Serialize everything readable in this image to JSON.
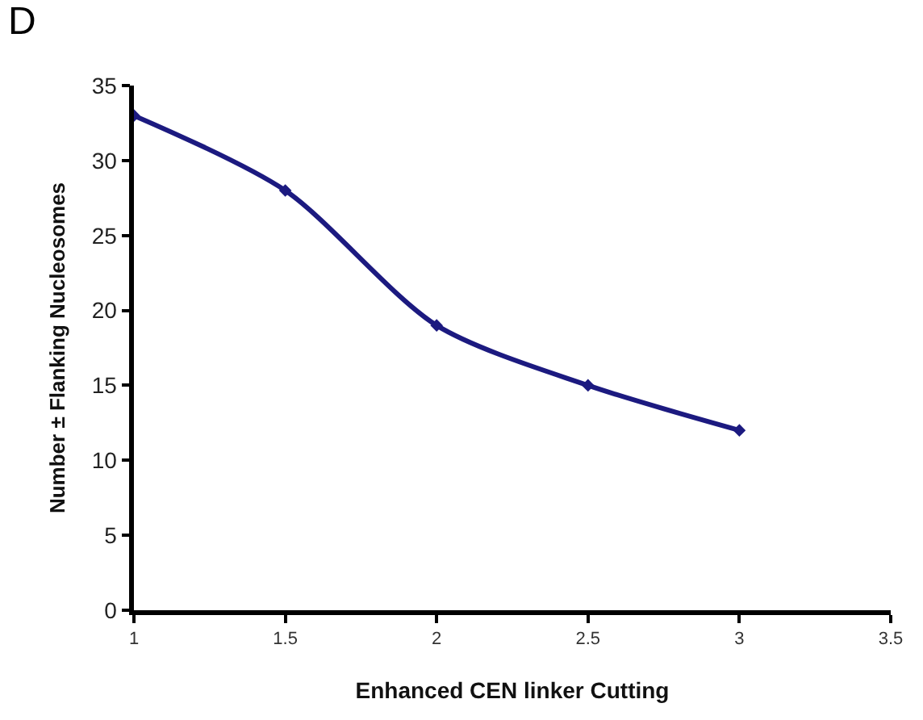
{
  "chart_data": {
    "type": "line",
    "annotations": [
      "D"
    ],
    "xlabel": "Enhanced CEN linker Cutting",
    "ylabel": "Number ± Flanking Nucleosomes",
    "x": [
      1,
      1.5,
      2,
      2.5,
      3
    ],
    "series": [
      {
        "color": "#1c1a80",
        "values": [
          33,
          28,
          19,
          15,
          12
        ]
      }
    ],
    "xlim": [
      1,
      3.5
    ],
    "xticks": [
      1,
      1.5,
      2,
      2.5,
      3,
      3.5
    ],
    "ylim": [
      0,
      35
    ],
    "yticks": [
      0,
      5,
      10,
      15,
      20,
      25,
      30,
      35
    ],
    "marker": "diamond",
    "line_style": "solid"
  }
}
